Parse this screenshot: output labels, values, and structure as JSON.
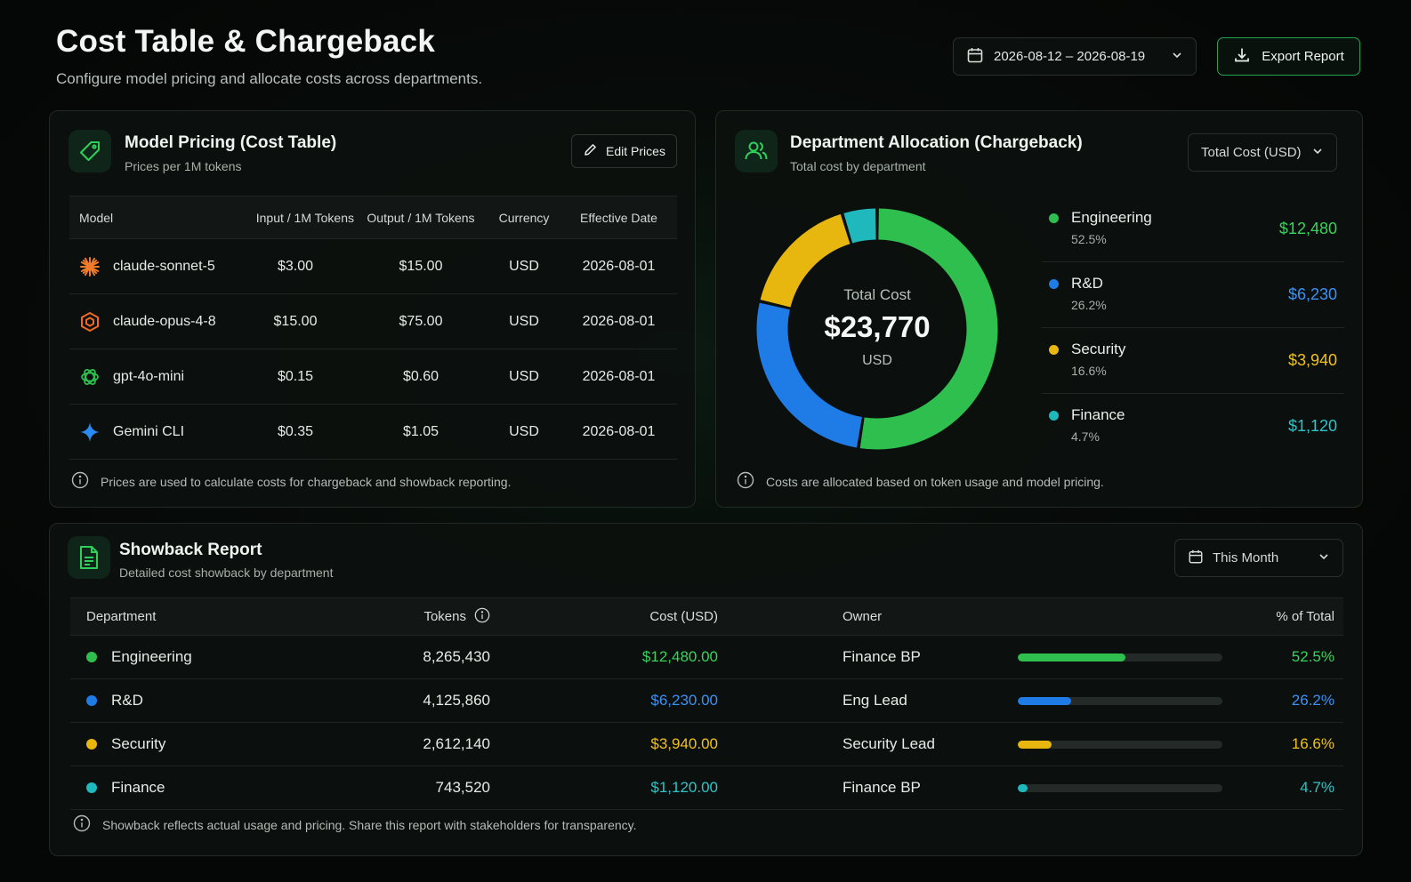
{
  "header": {
    "title": "Cost Table & Chargeback",
    "subtitle": "Configure model pricing and allocate costs across departments.",
    "date_range": "2026-08-12 – 2026-08-19",
    "export_label": "Export Report"
  },
  "pricing": {
    "title": "Model Pricing (Cost Table)",
    "subtitle": "Prices per 1M tokens",
    "edit_label": "Edit Prices",
    "columns": [
      "Model",
      "Input / 1M Tokens",
      "Output / 1M Tokens",
      "Currency",
      "Effective Date"
    ],
    "rows": [
      {
        "model": "claude-sonnet-5",
        "icon": "sunburst-icon",
        "input": "$3.00",
        "output": "$15.00",
        "currency": "USD",
        "date": "2026-08-01"
      },
      {
        "model": "claude-opus-4-8",
        "icon": "hexagon-icon",
        "input": "$15.00",
        "output": "$75.00",
        "currency": "USD",
        "date": "2026-08-01"
      },
      {
        "model": "gpt-4o-mini",
        "icon": "knot-icon",
        "input": "$0.15",
        "output": "$0.60",
        "currency": "USD",
        "date": "2026-08-01"
      },
      {
        "model": "Gemini CLI",
        "icon": "sparkle-icon",
        "input": "$0.35",
        "output": "$1.05",
        "currency": "USD",
        "date": "2026-08-01"
      }
    ],
    "note": "Prices are used to calculate costs for chargeback and showback reporting."
  },
  "allocation": {
    "title": "Department Allocation (Chargeback)",
    "subtitle": "Total cost by department",
    "select_value": "Total Cost (USD)",
    "center_label": "Total Cost",
    "center_value": "$23,770",
    "center_unit": "USD",
    "departments": [
      {
        "name": "Engineering",
        "pct": "52.5%",
        "value": "$12,480",
        "share": 52.5,
        "color": "#2fbf4f"
      },
      {
        "name": "R&D",
        "pct": "26.2%",
        "value": "$6,230",
        "share": 26.2,
        "color": "#1f7be6"
      },
      {
        "name": "Security",
        "pct": "16.6%",
        "value": "$3,940",
        "share": 16.6,
        "color": "#e7b710"
      },
      {
        "name": "Finance",
        "pct": "4.7%",
        "value": "$1,120",
        "share": 4.7,
        "color": "#1fb8bd"
      }
    ],
    "note": "Costs are allocated based on token usage and model pricing."
  },
  "showback": {
    "title": "Showback Report",
    "subtitle": "Detailed cost showback by department",
    "period": "This Month",
    "columns": {
      "department": "Department",
      "tokens": "Tokens",
      "cost": "Cost (USD)",
      "owner": "Owner",
      "pct": "% of Total"
    },
    "rows": [
      {
        "department": "Engineering",
        "tokens": "8,265,430",
        "cost": "$12,480.00",
        "owner": "Finance BP",
        "pct": "52.5%",
        "share": 52.5,
        "color": "#2fbf4f"
      },
      {
        "department": "R&D",
        "tokens": "4,125,860",
        "cost": "$6,230.00",
        "owner": "Eng Lead",
        "pct": "26.2%",
        "share": 26.2,
        "color": "#1f7be6"
      },
      {
        "department": "Security",
        "tokens": "2,612,140",
        "cost": "$3,940.00",
        "owner": "Security Lead",
        "pct": "16.6%",
        "share": 16.6,
        "color": "#e7b710"
      },
      {
        "department": "Finance",
        "tokens": "743,520",
        "cost": "$1,120.00",
        "owner": "Finance BP",
        "pct": "4.7%",
        "share": 4.7,
        "color": "#1fb8bd"
      }
    ],
    "note": "Showback reflects actual usage and pricing. Share this report with stakeholders for transparency."
  },
  "colors": {
    "accent": "#2fbf4f",
    "engineering": "#2fbf4f",
    "rnd": "#1f7be6",
    "security": "#e7b710",
    "finance": "#1fb8bd"
  }
}
